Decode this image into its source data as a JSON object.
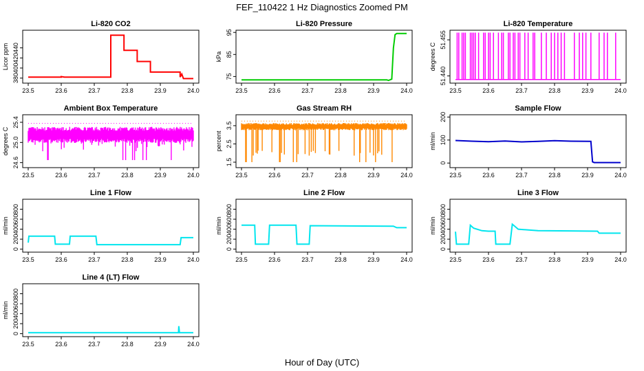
{
  "page": {
    "title": "FEF_110422  1 Hz Diagnostics Zoomed PM",
    "xlabel": "Hour of Day (UTC)"
  },
  "chart_data": [
    {
      "id": "co2",
      "type": "line",
      "title": "Li-820 CO2",
      "ylabel": "Licor ppm",
      "color": "#ff0000",
      "xlim": [
        23.5,
        24.0
      ],
      "ylim": [
        370,
        475
      ],
      "yticks": [
        "380",
        "400",
        "420",
        "440"
      ],
      "xticks": [
        "23.5",
        "23.6",
        "23.7",
        "23.8",
        "23.9",
        "24.0"
      ],
      "x": [
        23.5,
        23.6,
        23.6,
        23.61,
        23.75,
        23.75,
        23.76,
        23.79,
        23.79,
        23.83,
        23.83,
        23.87,
        23.87,
        23.89,
        23.96,
        23.96,
        23.965,
        23.97,
        24.0
      ],
      "y": [
        382,
        382,
        383,
        382,
        382,
        465,
        465,
        465,
        435,
        435,
        413,
        413,
        392,
        392,
        392,
        382,
        388,
        379,
        379
      ]
    },
    {
      "id": "pressure",
      "type": "line",
      "title": "Li-820 Pressure",
      "ylabel": "kPa",
      "color": "#00cc00",
      "xlim": [
        23.5,
        24.0
      ],
      "ylim": [
        72,
        96
      ],
      "yticks": [
        "75",
        "85",
        "95"
      ],
      "xticks": [
        "23.5",
        "23.6",
        "23.7",
        "23.8",
        "23.9",
        "24.0"
      ],
      "x": [
        23.5,
        23.94,
        23.945,
        23.955,
        23.96,
        23.965,
        23.97,
        24.0
      ],
      "y": [
        73.5,
        73.5,
        73.2,
        73.8,
        88,
        94,
        94.5,
        94.5
      ]
    },
    {
      "id": "temp",
      "type": "spikes",
      "title": "Li-820 Temperature",
      "ylabel": "degrees C",
      "color": "#ff00ff",
      "xlim": [
        23.5,
        24.0
      ],
      "ylim": [
        51.437,
        51.459
      ],
      "yticks": [
        "51.440",
        "51.455"
      ],
      "xticks": [
        "23.5",
        "23.6",
        "23.7",
        "23.8",
        "23.9",
        "24.0"
      ],
      "baseline": 51.4385,
      "top": 51.458,
      "spikes": [
        23.505,
        23.51,
        23.52,
        23.525,
        23.53,
        23.545,
        23.55,
        23.555,
        23.56,
        23.57,
        23.585,
        23.59,
        23.6,
        23.605,
        23.615,
        23.63,
        23.64,
        23.645,
        23.66,
        23.665,
        23.675,
        23.68,
        23.69,
        23.695,
        23.71,
        23.72,
        23.735,
        23.74,
        23.76,
        23.775,
        23.79,
        23.8,
        23.81,
        23.82,
        23.83,
        23.86,
        23.875,
        23.885,
        23.895,
        23.91,
        23.935,
        23.95,
        23.96,
        23.985
      ]
    },
    {
      "id": "ambient",
      "type": "band",
      "title": "Ambient Box Temperature",
      "ylabel": "degrees C",
      "color": "#ff00ff",
      "xlim": [
        23.5,
        24.0
      ],
      "ylim": [
        24.5,
        25.55
      ],
      "yticks": [
        "24.6",
        "25.0",
        "25.4"
      ],
      "xticks": [
        "23.5",
        "23.6",
        "23.7",
        "23.8",
        "23.9",
        "24.0"
      ],
      "center": 25.15,
      "spread": 0.16,
      "dips": 25.0,
      "spikes_low": 24.65,
      "spikes_high": 25.38
    },
    {
      "id": "rh",
      "type": "band",
      "title": "Gas Stream RH",
      "ylabel": "percent",
      "color": "#ff8800",
      "xlim": [
        23.5,
        24.0
      ],
      "ylim": [
        1.2,
        4.1
      ],
      "yticks": [
        "1.5",
        "2.5",
        "3.5"
      ],
      "xticks": [
        "23.5",
        "23.6",
        "23.7",
        "23.8",
        "23.9",
        "24.0"
      ],
      "center": 3.45,
      "spread": 0.2,
      "dips": 2.2,
      "spikes_low": 1.5,
      "spikes_high": 3.75
    },
    {
      "id": "sample",
      "type": "line",
      "title": "Sample Flow",
      "ylabel": "ml/min",
      "color": "#0000cc",
      "xlim": [
        23.5,
        24.0
      ],
      "ylim": [
        -20,
        210
      ],
      "yticks": [
        "0",
        "100",
        "200"
      ],
      "xticks": [
        "23.5",
        "23.6",
        "23.7",
        "23.8",
        "23.9",
        "24.0"
      ],
      "x": [
        23.5,
        23.55,
        23.6,
        23.65,
        23.7,
        23.75,
        23.8,
        23.85,
        23.91,
        23.915,
        23.92,
        24.0
      ],
      "y": [
        98,
        95,
        93,
        96,
        92,
        94,
        97,
        95,
        94,
        5,
        2,
        2
      ]
    },
    {
      "id": "line1",
      "type": "line",
      "title": "Line 1 Flow",
      "ylabel": "ml/min",
      "color": "#00e5ee",
      "xlim": [
        23.5,
        24.0
      ],
      "ylim": [
        -60,
        1000
      ],
      "yticks": [
        "0",
        "200",
        "400",
        "600",
        "800"
      ],
      "xticks": [
        "23.5",
        "23.6",
        "23.7",
        "23.8",
        "23.9",
        "24.0"
      ],
      "x": [
        23.5,
        23.502,
        23.58,
        23.582,
        23.625,
        23.627,
        23.705,
        23.708,
        23.96,
        23.963,
        24.0
      ],
      "y": [
        130,
        260,
        260,
        100,
        100,
        260,
        260,
        90,
        90,
        230,
        230
      ]
    },
    {
      "id": "line2",
      "type": "line",
      "title": "Line 2 Flow",
      "ylabel": "ml/min",
      "color": "#00e5ee",
      "xlim": [
        23.5,
        24.0
      ],
      "ylim": [
        -60,
        1000
      ],
      "yticks": [
        "0",
        "200",
        "400",
        "600",
        "800"
      ],
      "xticks": [
        "23.5",
        "23.6",
        "23.7",
        "23.8",
        "23.9",
        "24.0"
      ],
      "x": [
        23.5,
        23.54,
        23.542,
        23.582,
        23.585,
        23.665,
        23.668,
        23.705,
        23.708,
        23.96,
        23.97,
        24.0
      ],
      "y": [
        480,
        480,
        100,
        100,
        480,
        480,
        100,
        100,
        470,
        460,
        430,
        430
      ]
    },
    {
      "id": "line3",
      "type": "line",
      "title": "Line 3 Flow",
      "ylabel": "ml/min",
      "color": "#00e5ee",
      "xlim": [
        23.5,
        24.0
      ],
      "ylim": [
        -60,
        1000
      ],
      "yticks": [
        "0",
        "200",
        "400",
        "600",
        "800"
      ],
      "xticks": [
        "23.5",
        "23.6",
        "23.7",
        "23.8",
        "23.9",
        "24.0"
      ],
      "x": [
        23.5,
        23.503,
        23.54,
        23.545,
        23.555,
        23.58,
        23.6,
        23.62,
        23.622,
        23.665,
        23.672,
        23.69,
        23.75,
        23.85,
        23.93,
        23.935,
        24.0
      ],
      "y": [
        350,
        100,
        100,
        480,
        420,
        370,
        360,
        360,
        100,
        100,
        500,
        400,
        370,
        365,
        360,
        320,
        320
      ]
    },
    {
      "id": "line4",
      "type": "line",
      "title": "Line 4 (LT) Flow",
      "ylabel": "ml/min",
      "color": "#00e5ee",
      "xlim": [
        23.5,
        24.0
      ],
      "ylim": [
        -60,
        1000
      ],
      "yticks": [
        "0",
        "200",
        "400",
        "600",
        "800"
      ],
      "xticks": [
        "23.5",
        "23.6",
        "23.7",
        "23.8",
        "23.9",
        "24.0"
      ],
      "x": [
        23.5,
        23.7,
        23.955,
        23.956,
        23.958,
        23.96,
        24.0
      ],
      "y": [
        20,
        20,
        20,
        150,
        20,
        20,
        20
      ]
    }
  ]
}
